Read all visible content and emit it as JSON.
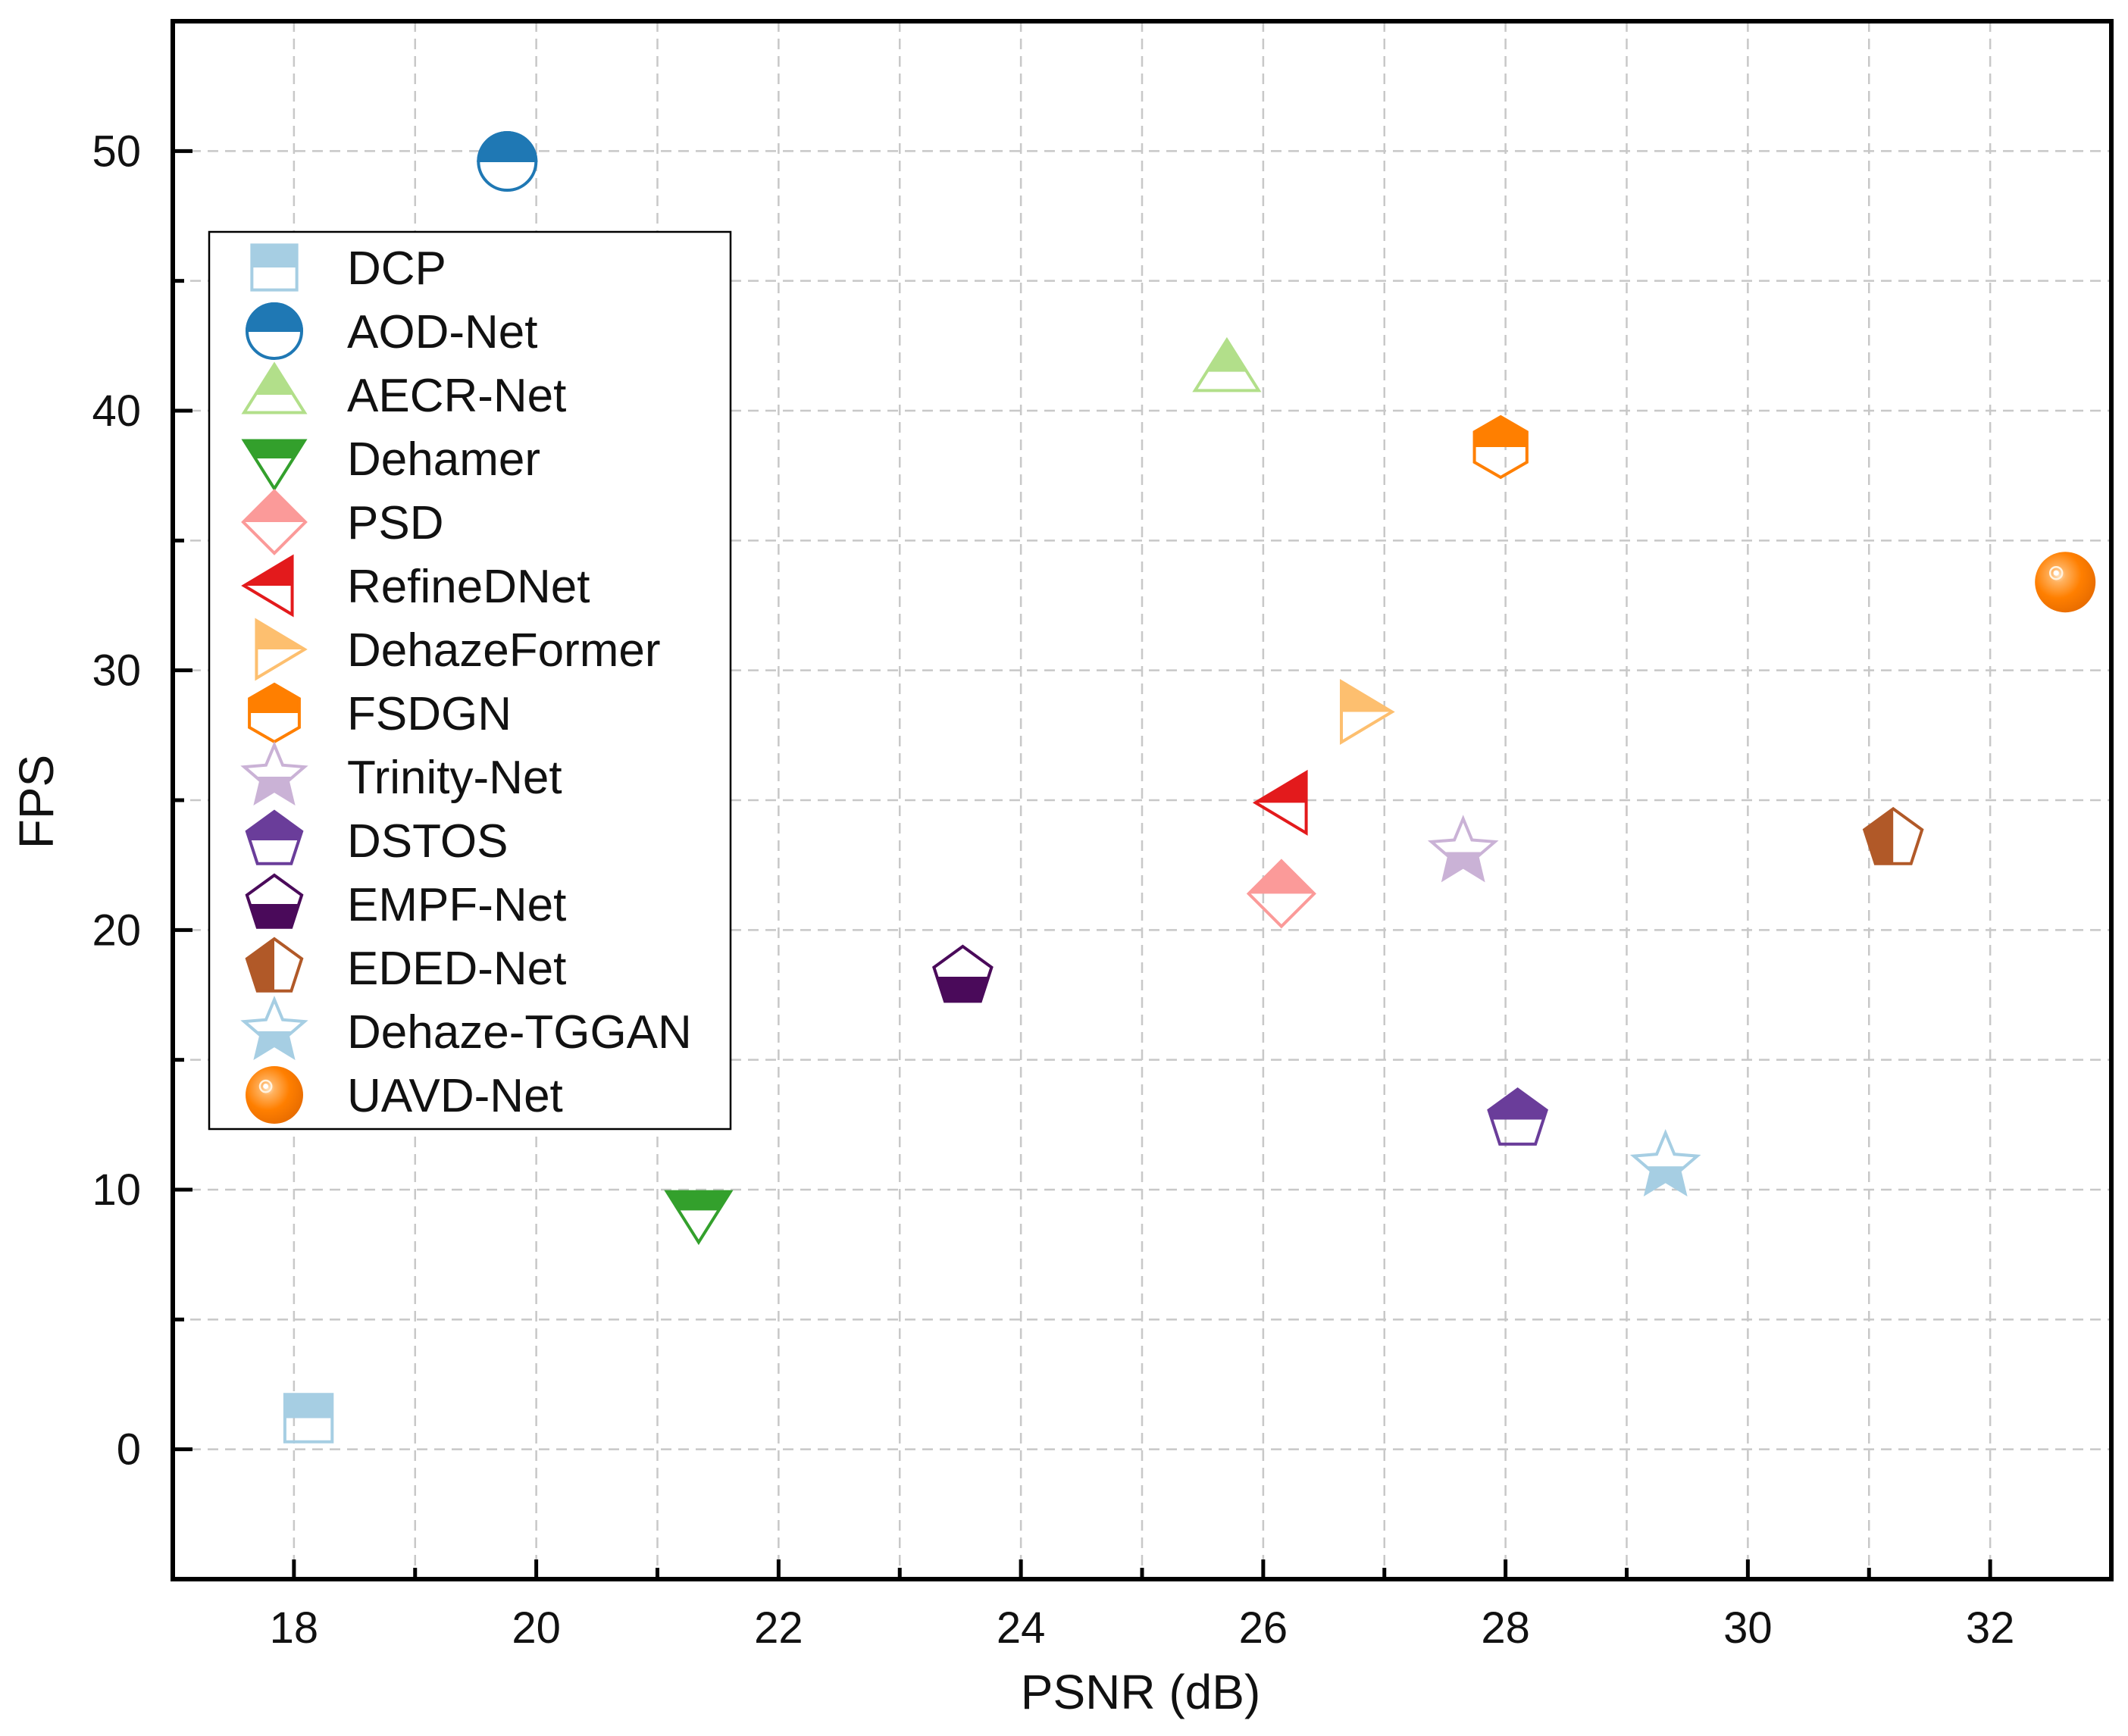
{
  "chart_data": {
    "type": "scatter",
    "title": "",
    "xlabel": "PSNR (dB)",
    "ylabel": "FPS",
    "xlim": [
      17,
      33
    ],
    "ylim": [
      -5,
      55
    ],
    "xticks": [
      18,
      20,
      22,
      24,
      26,
      28,
      30,
      32
    ],
    "yticks": [
      0,
      10,
      20,
      30,
      40,
      50
    ],
    "grid": true,
    "legend_position": "left",
    "series": [
      {
        "name": "DCP",
        "x": 18.12,
        "y": 1.2,
        "marker": "square",
        "color": "#a6cee3"
      },
      {
        "name": "AOD-Net",
        "x": 19.76,
        "y": 49.6,
        "marker": "circle",
        "color": "#1f78b4"
      },
      {
        "name": "AECR-Net",
        "x": 25.7,
        "y": 41.5,
        "marker": "triangle-up",
        "color": "#b2df8a"
      },
      {
        "name": "Dehamer",
        "x": 21.34,
        "y": 9.2,
        "marker": "triangle-down",
        "color": "#33a02c"
      },
      {
        "name": "PSD",
        "x": 26.15,
        "y": 21.4,
        "marker": "diamond",
        "color": "#fb9a99"
      },
      {
        "name": "RefineDNet",
        "x": 26.2,
        "y": 24.9,
        "marker": "triangle-left",
        "color": "#e31a1c"
      },
      {
        "name": "DehazeFormer",
        "x": 26.8,
        "y": 28.4,
        "marker": "triangle-right",
        "color": "#fdbf6f"
      },
      {
        "name": "FSDGN",
        "x": 27.96,
        "y": 38.6,
        "marker": "hexagon",
        "color": "#ff7f00"
      },
      {
        "name": "Trinity-Net",
        "x": 27.65,
        "y": 23.0,
        "marker": "star",
        "color": "#cab2d6"
      },
      {
        "name": "DSTOS",
        "x": 28.1,
        "y": 12.7,
        "marker": "pentagon",
        "color": "#6a3d9a"
      },
      {
        "name": "EMPF-Net",
        "x": 23.52,
        "y": 18.2,
        "marker": "pentagon-bottom",
        "color": "#4a0a5a"
      },
      {
        "name": "EDED-Net",
        "x": 31.2,
        "y": 23.5,
        "marker": "pentagon-left",
        "color": "#b15928"
      },
      {
        "name": "Dehaze-TGGAN",
        "x": 29.32,
        "y": 10.9,
        "marker": "star",
        "color": "#a6cee3"
      },
      {
        "name": "UAVD-Net",
        "x": 32.62,
        "y": 33.4,
        "marker": "sphere",
        "color": "#ff7f00"
      }
    ]
  }
}
